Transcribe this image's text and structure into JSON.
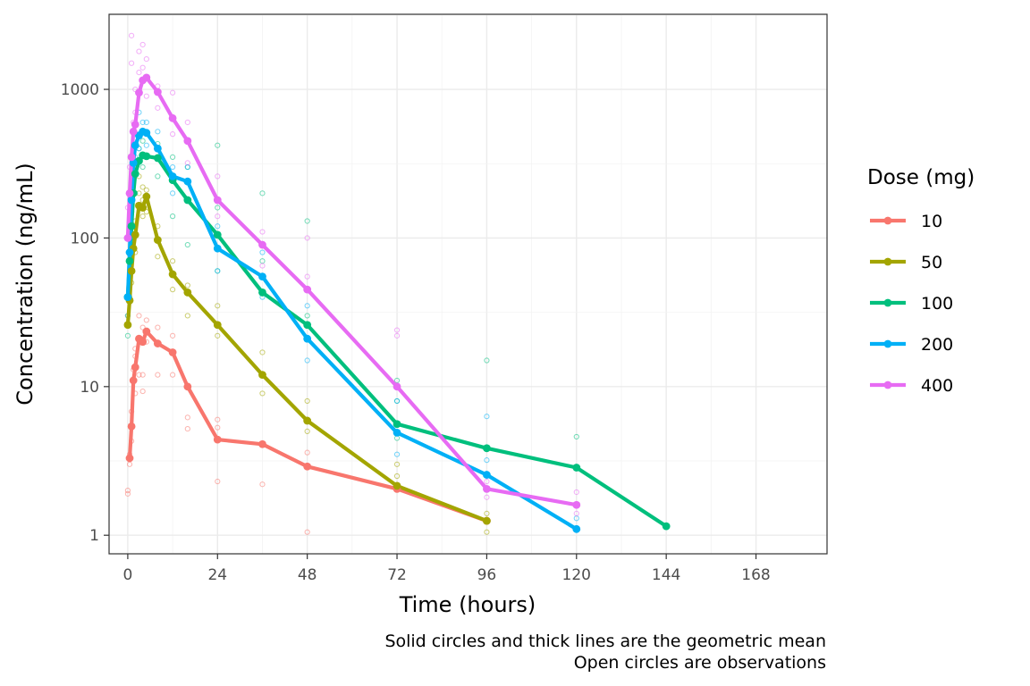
{
  "chart_data": {
    "type": "line",
    "xlabel": "Time (hours)",
    "ylabel": "Concentration (ng/mL)",
    "y_scale": "log10",
    "xlim": [
      -5,
      187
    ],
    "ylim": [
      0.75,
      3200
    ],
    "x_ticks": [
      0,
      24,
      48,
      72,
      96,
      120,
      144,
      168
    ],
    "x_tick_labels": [
      "0",
      "24",
      "48",
      "72",
      "96",
      "120",
      "144",
      "168"
    ],
    "y_ticks": [
      1,
      10,
      100,
      1000
    ],
    "y_tick_labels": [
      "1",
      "10",
      "100",
      "1000"
    ],
    "grid": true,
    "legend": {
      "title": "Dose (mg)",
      "placement": "right",
      "entries": [
        "10",
        "50",
        "100",
        "200",
        "400"
      ]
    },
    "caption": [
      "Solid circles and thick lines are the geometric mean",
      "Open circles are observations"
    ],
    "series": [
      {
        "name": "10",
        "color": "#F8766D",
        "x": [
          0.5,
          1,
          1.5,
          2,
          3,
          4,
          5,
          8,
          12,
          16,
          24,
          36,
          48,
          72,
          96
        ],
        "y": [
          3.3,
          5.4,
          11,
          13.5,
          21,
          20,
          23.5,
          19.5,
          17,
          10,
          4.4,
          4.1,
          2.9,
          2.05,
          1.25
        ]
      },
      {
        "name": "50",
        "color": "#A3A500",
        "x": [
          0,
          0.5,
          1,
          1.5,
          2,
          3,
          4,
          5,
          8,
          12,
          16,
          24,
          36,
          48,
          72,
          96
        ],
        "y": [
          26,
          38,
          60,
          85,
          105,
          165,
          160,
          190,
          97,
          57,
          43,
          26,
          12,
          5.9,
          2.15,
          1.25
        ]
      },
      {
        "name": "100",
        "color": "#00BF7D",
        "x": [
          0,
          0.5,
          1,
          1.5,
          2,
          3,
          4,
          5,
          8,
          12,
          16,
          24,
          36,
          48,
          72,
          96,
          120,
          144
        ],
        "y": [
          40,
          70,
          120,
          200,
          270,
          330,
          360,
          355,
          345,
          245,
          180,
          105,
          43,
          26,
          5.6,
          3.85,
          2.85,
          1.15
        ]
      },
      {
        "name": "200",
        "color": "#00B0F6",
        "x": [
          0,
          0.5,
          1,
          1.5,
          2,
          3,
          4,
          5,
          8,
          12,
          16,
          24,
          36,
          48,
          72,
          96,
          120
        ],
        "y": [
          40,
          80,
          180,
          320,
          420,
          490,
          520,
          510,
          400,
          260,
          240,
          85,
          55,
          21,
          4.9,
          2.55,
          1.1
        ]
      },
      {
        "name": "400",
        "color": "#E76BF3",
        "x": [
          0,
          0.5,
          1,
          1.5,
          2,
          3,
          4,
          5,
          8,
          12,
          16,
          24,
          36,
          48,
          72,
          96,
          120
        ],
        "y": [
          100,
          200,
          350,
          520,
          580,
          950,
          1150,
          1200,
          960,
          640,
          450,
          180,
          90,
          45,
          10,
          2.05,
          1.6
        ]
      }
    ],
    "observations": [
      {
        "series": "10",
        "x": [
          0,
          0,
          0.5,
          0.5,
          1,
          1,
          1.5,
          2,
          2,
          2,
          3,
          3,
          4,
          4,
          4,
          5,
          5,
          8,
          8,
          12,
          12,
          16,
          16,
          24,
          24,
          24,
          36,
          48,
          48
        ],
        "y": [
          2.0,
          1.9,
          3.5,
          3.0,
          6.8,
          4.3,
          13,
          9,
          16,
          18,
          30,
          12,
          25,
          12,
          9.3,
          28,
          20,
          25,
          12,
          22,
          12,
          6.2,
          5.2,
          6.0,
          5.3,
          2.3,
          2.2,
          3.6,
          1.05
        ]
      },
      {
        "series": "50",
        "x": [
          0,
          0.5,
          1,
          1,
          2,
          2,
          3,
          3,
          4,
          4,
          4,
          5,
          5,
          8,
          8,
          12,
          12,
          16,
          16,
          24,
          24,
          36,
          36,
          48,
          48,
          72,
          72,
          96,
          96
        ],
        "y": [
          30,
          40,
          50,
          75,
          80,
          130,
          200,
          260,
          180,
          140,
          220,
          210,
          150,
          120,
          75,
          70,
          45,
          48,
          30,
          35,
          22,
          17,
          9,
          8,
          5,
          3,
          2.5,
          1.4,
          1.05
        ]
      },
      {
        "series": "100",
        "x": [
          0,
          0.5,
          1,
          1,
          2,
          2,
          3,
          4,
          4,
          5,
          8,
          8,
          12,
          12,
          16,
          16,
          24,
          24,
          24,
          36,
          36,
          48,
          48,
          48,
          72,
          72,
          72,
          96,
          120
        ],
        "y": [
          22,
          48,
          150,
          100,
          300,
          200,
          400,
          450,
          300,
          500,
          430,
          260,
          350,
          140,
          300,
          90,
          420,
          160,
          60,
          200,
          70,
          130,
          45,
          30,
          11,
          8,
          4.5,
          15,
          4.6
        ]
      },
      {
        "series": "200",
        "x": [
          0,
          0.5,
          1,
          2,
          2,
          3,
          3,
          4,
          5,
          5,
          8,
          12,
          12,
          16,
          24,
          24,
          36,
          36,
          48,
          48,
          72,
          72,
          96,
          96,
          120,
          120
        ],
        "y": [
          30,
          70,
          150,
          500,
          350,
          700,
          400,
          600,
          600,
          420,
          520,
          300,
          200,
          300,
          120,
          60,
          80,
          40,
          35,
          15,
          8,
          3.5,
          6.3,
          3.2,
          1.6,
          1.3
        ]
      },
      {
        "series": "400",
        "x": [
          0,
          0.5,
          1,
          1,
          1.5,
          2,
          2,
          3,
          3,
          4,
          4,
          5,
          5,
          8,
          8,
          12,
          12,
          16,
          16,
          24,
          24,
          36,
          36,
          48,
          48,
          72,
          72,
          96,
          96,
          120,
          120
        ],
        "y": [
          160,
          300,
          2300,
          1500,
          600,
          1000,
          700,
          1800,
          1300,
          2000,
          1400,
          1600,
          900,
          1050,
          750,
          950,
          500,
          600,
          320,
          260,
          140,
          110,
          65,
          100,
          55,
          24,
          22,
          2.3,
          1.8,
          1.95,
          1.4
        ]
      }
    ]
  }
}
